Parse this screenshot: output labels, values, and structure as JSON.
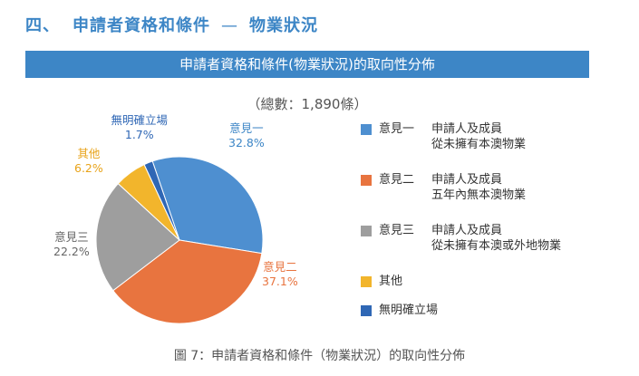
{
  "heading": {
    "number": "四、",
    "title": "申請者資格和條件",
    "dash": "—",
    "subtitle": "物業狀況"
  },
  "banner_title": "申請者資格和條件(物業狀況)的取向性分佈",
  "total_label": "（總數：1,890條）",
  "caption": "圖 7：申請者資格和條件（物業狀況）的取向性分佈",
  "colors": {
    "heading": "#3d86c6",
    "banner": "#3d86c6"
  },
  "chart_data": {
    "type": "pie",
    "title": "申請者資格和條件(物業狀況)的取向性分佈",
    "total": 1890,
    "slices": [
      {
        "name": "意見一",
        "value": 32.8,
        "value_label": "32.8%",
        "color": "#4e8fd0",
        "text_color": "#3d86c6",
        "desc": [
          "申請人及成員",
          "從未擁有本澳物業"
        ]
      },
      {
        "name": "意見二",
        "value": 37.1,
        "value_label": "37.1%",
        "color": "#e8743f",
        "text_color": "#e8743f",
        "desc": [
          "申請人及成員",
          "五年內無本澳物業"
        ]
      },
      {
        "name": "意見三",
        "value": 22.2,
        "value_label": "22.2%",
        "color": "#9e9e9e",
        "text_color": "#666666",
        "desc": [
          "申請人及成員",
          "從未擁有本澳或外地物業"
        ]
      },
      {
        "name": "其他",
        "value": 6.2,
        "value_label": "6.2%",
        "color": "#f2b52c",
        "text_color": "#e8a319",
        "desc": []
      },
      {
        "name": "無明確立場",
        "value": 1.7,
        "value_label": "1.7%",
        "color": "#2f67b5",
        "text_color": "#2f67b5",
        "desc": []
      }
    ]
  }
}
